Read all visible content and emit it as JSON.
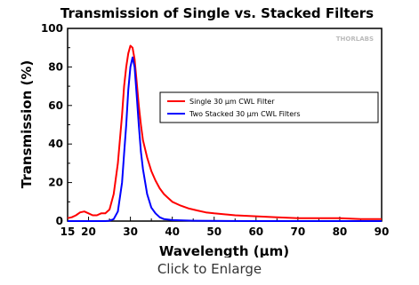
{
  "chart_data": {
    "type": "line",
    "title": "Transmission of Single vs. Stacked Filters",
    "xlabel": "Wavelength (µm)",
    "ylabel": "Transmission (%)",
    "xlim": [
      15,
      90
    ],
    "ylim": [
      0,
      100
    ],
    "xticks": [
      15,
      20,
      30,
      40,
      50,
      60,
      70,
      80,
      90
    ],
    "yticks": [
      0,
      20,
      40,
      60,
      80,
      100
    ],
    "grid": false,
    "legend_position": "top-right",
    "watermark": "THORLABS",
    "series": [
      {
        "name": "Single 30 µm CWL Filter",
        "color": "#ff0000",
        "x": [
          15,
          16,
          17,
          18,
          19,
          20,
          21,
          22,
          23,
          24,
          25,
          26,
          27,
          28,
          28.5,
          29,
          29.5,
          30,
          30.5,
          31,
          31.5,
          32,
          32.5,
          33,
          34,
          35,
          36,
          37,
          38,
          39,
          40,
          42,
          44,
          46,
          48,
          50,
          55,
          60,
          65,
          70,
          75,
          80,
          85,
          90
        ],
        "y": [
          1.5,
          2,
          3,
          4.5,
          5,
          4,
          3,
          3,
          4,
          4,
          6,
          14,
          30,
          55,
          70,
          80,
          87,
          91,
          90,
          84,
          72,
          60,
          50,
          42,
          33,
          26,
          21,
          17,
          14,
          12,
          10,
          8,
          6.5,
          5.5,
          4.5,
          4,
          3,
          2.5,
          2,
          1.5,
          1.5,
          1.5,
          1,
          1
        ]
      },
      {
        "name": "Two Stacked 30 µm CWL Filters",
        "color": "#0000ff",
        "x": [
          15,
          20,
          24,
          25,
          26,
          27,
          28,
          28.5,
          29,
          29.5,
          30,
          30.5,
          31,
          31.5,
          32,
          32.5,
          33,
          34,
          35,
          36,
          37,
          38,
          40,
          45,
          50,
          60,
          70,
          80,
          90
        ],
        "y": [
          0,
          0,
          0,
          0.2,
          1,
          5,
          20,
          35,
          50,
          68,
          80,
          85,
          80,
          65,
          50,
          36,
          27,
          14,
          7,
          4,
          2,
          1,
          0.5,
          0.2,
          0.1,
          0,
          0,
          0,
          0
        ]
      }
    ]
  },
  "caption": "Click to Enlarge"
}
